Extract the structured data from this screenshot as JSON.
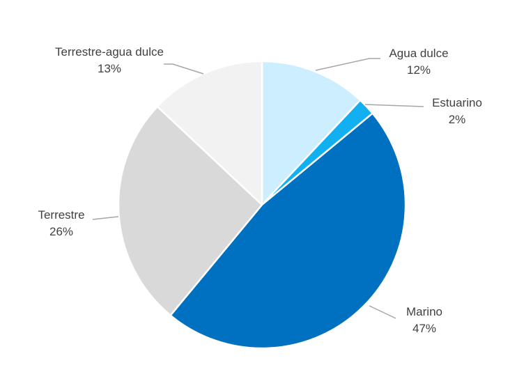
{
  "chart_data": {
    "type": "pie",
    "title": "",
    "slices": [
      {
        "name": "Agua dulce",
        "value": 12,
        "label": "12%",
        "color": "#cceeff"
      },
      {
        "name": "Estuarino",
        "value": 2,
        "label": "2%",
        "color": "#12b0f0"
      },
      {
        "name": "Marino",
        "value": 47,
        "label": "47%",
        "color": "#0070c0"
      },
      {
        "name": "Terrestre",
        "value": 26,
        "label": "26%",
        "color": "#d9d9d9"
      },
      {
        "name": "Terrestre-agua dulce",
        "value": 13,
        "label": "13%",
        "color": "#f2f2f2"
      }
    ],
    "start_angle_deg": 0,
    "direction": "clockwise",
    "slice_border_color": "#ffffff",
    "leader_line_color": "#a6a6a6",
    "legend": "none",
    "data_labels": "outside with leader lines, category name and percentage"
  }
}
